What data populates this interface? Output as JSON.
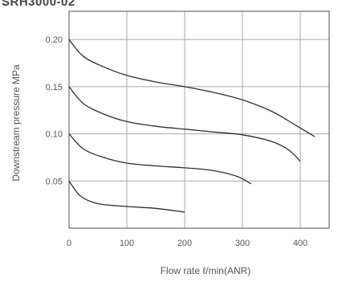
{
  "title": "SRH3000-02",
  "chart_data": {
    "type": "line",
    "xlabel": "Flow rate ℓ/min(ANR)",
    "ylabel": "Downstream pressure MPa",
    "xlim": [
      0,
      450
    ],
    "ylim": [
      0,
      0.23
    ],
    "x_ticks": [
      0,
      100,
      200,
      300,
      400
    ],
    "x_tick_labels": [
      "0",
      "100",
      "200",
      "300",
      "400"
    ],
    "y_ticks": [
      0.05,
      0.1,
      0.15,
      0.2
    ],
    "y_tick_labels": [
      "0.05",
      "0.10",
      "0.15",
      "0.20"
    ],
    "grid": true,
    "series": [
      {
        "x": [
          0,
          25,
          60,
          100,
          150,
          200,
          250,
          300,
          350,
          390,
          425
        ],
        "y": [
          0.2,
          0.182,
          0.171,
          0.162,
          0.155,
          0.15,
          0.144,
          0.136,
          0.124,
          0.11,
          0.097
        ]
      },
      {
        "x": [
          0,
          25,
          60,
          100,
          150,
          200,
          250,
          300,
          350,
          380,
          400
        ],
        "y": [
          0.15,
          0.132,
          0.121,
          0.113,
          0.108,
          0.105,
          0.102,
          0.099,
          0.092,
          0.083,
          0.071
        ]
      },
      {
        "x": [
          0,
          25,
          60,
          100,
          150,
          200,
          250,
          290,
          315
        ],
        "y": [
          0.1,
          0.084,
          0.075,
          0.069,
          0.066,
          0.064,
          0.061,
          0.055,
          0.047
        ]
      },
      {
        "x": [
          0,
          20,
          50,
          100,
          150,
          200
        ],
        "y": [
          0.05,
          0.034,
          0.026,
          0.023,
          0.021,
          0.017
        ]
      }
    ]
  }
}
